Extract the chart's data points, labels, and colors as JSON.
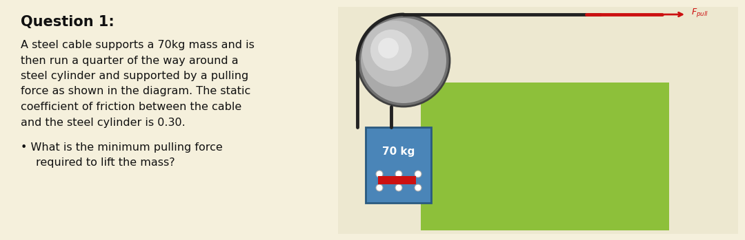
{
  "bg_color": "#f5f0dc",
  "title": "Question 1:",
  "body_lines": [
    "A steel cable supports a 70kg mass and is",
    "then run a quarter of the way around a",
    "steel cylinder and supported by a pulling",
    "force as shown in the diagram. The static",
    "coefficient of friction between the cable",
    "and the steel cylinder is 0.30."
  ],
  "bullet_line1": "What is the minimum pulling force",
  "bullet_line2": "required to lift the mass?",
  "green_color": "#8dc03a",
  "blue_color": "#4a85b8",
  "cable_color": "#222222",
  "cable_red_color": "#cc1111",
  "arrow_color": "#cc1111",
  "mass_label": "70 kg",
  "diag_bg": "#ede8d0",
  "cyl_rim": "#606060",
  "cyl_body": "#aaaaaa",
  "cyl_shine": "#d8d8d8"
}
